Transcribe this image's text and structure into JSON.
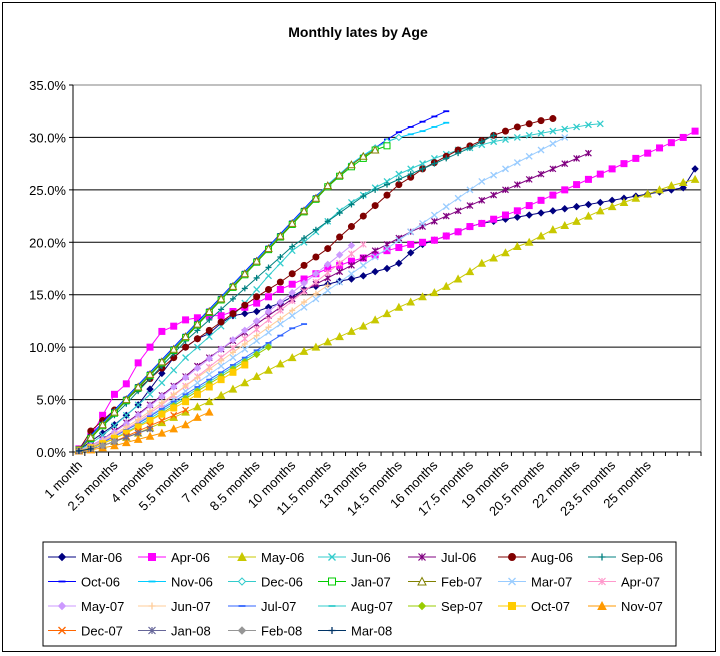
{
  "chart_data": {
    "type": "line",
    "title": "Monthly lates by Age",
    "xlabel": "",
    "ylabel": "",
    "ylim": [
      0,
      0.35
    ],
    "yticks": [
      0,
      0.05,
      0.1,
      0.15,
      0.2,
      0.25,
      0.3,
      0.35
    ],
    "ytick_labels": [
      "0.0%",
      "5.0%",
      "10.0%",
      "15.0%",
      "20.0%",
      "25.0%",
      "30.0%",
      "35.0%"
    ],
    "x_start": 1,
    "x_step": 0.5,
    "x_count": 53,
    "xtick_labels": [
      "1 month",
      "2.5 months",
      "4 months",
      "5.5 months",
      "7 months",
      "8.5 months",
      "10 months",
      "11.5 months",
      "13 months",
      "14.5 months",
      "16 months",
      "17.5 months",
      "19 months",
      "20.5 months",
      "22 months",
      "23.5 months",
      "25 months"
    ],
    "grid": "horizontal",
    "legend_position": "bottom",
    "series": [
      {
        "name": "Mar-06",
        "color": "#000080",
        "marker": "diamond",
        "values": [
          0.002,
          0.01,
          0.018,
          0.026,
          0.035,
          0.045,
          0.06,
          0.075,
          0.09,
          0.1,
          0.108,
          0.113,
          0.123,
          0.13,
          0.132,
          0.134,
          0.138,
          0.142,
          0.148,
          0.155,
          0.158,
          0.16,
          0.163,
          0.165,
          0.168,
          0.172,
          0.175,
          0.18,
          0.19,
          0.198,
          0.202,
          0.206,
          0.21,
          0.215,
          0.218,
          0.22,
          0.222,
          0.224,
          0.226,
          0.228,
          0.23,
          0.232,
          0.234,
          0.236,
          0.238,
          0.24,
          0.242,
          0.244,
          0.246,
          0.248,
          0.25,
          0.252,
          0.27
        ]
      },
      {
        "name": "Apr-06",
        "color": "#FF00FF",
        "marker": "square",
        "values": [
          0.003,
          0.015,
          0.035,
          0.055,
          0.065,
          0.085,
          0.1,
          0.115,
          0.12,
          0.126,
          0.128,
          0.13,
          0.13,
          0.134,
          0.138,
          0.142,
          0.148,
          0.155,
          0.16,
          0.165,
          0.17,
          0.175,
          0.178,
          0.182,
          0.185,
          0.188,
          0.192,
          0.195,
          0.198,
          0.2,
          0.202,
          0.206,
          0.21,
          0.215,
          0.218,
          0.222,
          0.226,
          0.23,
          0.235,
          0.24,
          0.245,
          0.25,
          0.255,
          0.26,
          0.265,
          0.27,
          0.275,
          0.28,
          0.285,
          0.29,
          0.295,
          0.3,
          0.306
        ]
      },
      {
        "name": "May-06",
        "color": "#C8C800",
        "marker": "triangle",
        "values": [
          0.001,
          0.003,
          0.006,
          0.01,
          0.014,
          0.018,
          0.023,
          0.028,
          0.033,
          0.038,
          0.043,
          0.048,
          0.054,
          0.06,
          0.066,
          0.072,
          0.078,
          0.084,
          0.09,
          0.096,
          0.1,
          0.105,
          0.11,
          0.115,
          0.12,
          0.126,
          0.132,
          0.138,
          0.143,
          0.148,
          0.152,
          0.158,
          0.165,
          0.172,
          0.18,
          0.185,
          0.19,
          0.196,
          0.2,
          0.206,
          0.212,
          0.216,
          0.22,
          0.225,
          0.23,
          0.234,
          0.238,
          0.242,
          0.246,
          0.25,
          0.254,
          0.257,
          0.26
        ]
      },
      {
        "name": "Jun-06",
        "color": "#33CCCC",
        "marker": "x",
        "values": [
          0.002,
          0.008,
          0.016,
          0.025,
          0.035,
          0.045,
          0.055,
          0.066,
          0.078,
          0.09,
          0.1,
          0.11,
          0.12,
          0.13,
          0.142,
          0.155,
          0.168,
          0.18,
          0.192,
          0.2,
          0.21,
          0.22,
          0.23,
          0.238,
          0.245,
          0.252,
          0.258,
          0.265,
          0.27,
          0.275,
          0.28,
          0.284,
          0.288,
          0.29,
          0.293,
          0.296,
          0.298,
          0.3,
          0.302,
          0.304,
          0.306,
          0.308,
          0.31,
          0.312,
          0.313
        ]
      },
      {
        "name": "Jul-06",
        "color": "#800080",
        "marker": "star",
        "values": [
          0.001,
          0.006,
          0.012,
          0.02,
          0.028,
          0.036,
          0.045,
          0.054,
          0.063,
          0.072,
          0.082,
          0.09,
          0.098,
          0.106,
          0.114,
          0.122,
          0.13,
          0.138,
          0.146,
          0.154,
          0.16,
          0.166,
          0.172,
          0.178,
          0.185,
          0.192,
          0.198,
          0.204,
          0.21,
          0.215,
          0.22,
          0.225,
          0.23,
          0.235,
          0.24,
          0.245,
          0.25,
          0.255,
          0.26,
          0.265,
          0.27,
          0.275,
          0.28,
          0.285
        ]
      },
      {
        "name": "Aug-06",
        "color": "#800000",
        "marker": "circle",
        "values": [
          0.002,
          0.02,
          0.03,
          0.04,
          0.05,
          0.06,
          0.07,
          0.08,
          0.09,
          0.1,
          0.108,
          0.116,
          0.124,
          0.132,
          0.14,
          0.148,
          0.155,
          0.162,
          0.17,
          0.178,
          0.186,
          0.194,
          0.205,
          0.215,
          0.225,
          0.235,
          0.245,
          0.255,
          0.262,
          0.27,
          0.276,
          0.282,
          0.288,
          0.292,
          0.297,
          0.302,
          0.306,
          0.31,
          0.313,
          0.316,
          0.318
        ]
      },
      {
        "name": "Sep-06",
        "color": "#008080",
        "marker": "plus",
        "values": [
          0.002,
          0.015,
          0.025,
          0.035,
          0.046,
          0.058,
          0.07,
          0.082,
          0.094,
          0.106,
          0.116,
          0.126,
          0.136,
          0.146,
          0.156,
          0.166,
          0.176,
          0.186,
          0.196,
          0.204,
          0.212,
          0.22,
          0.228,
          0.236,
          0.244,
          0.25,
          0.255,
          0.26,
          0.265,
          0.27,
          0.275,
          0.28,
          0.285,
          0.29,
          0.296,
          0.302
        ]
      },
      {
        "name": "Oct-06",
        "color": "#0000FF",
        "marker": "dash",
        "values": [
          0.002,
          0.016,
          0.028,
          0.04,
          0.052,
          0.064,
          0.076,
          0.088,
          0.1,
          0.112,
          0.124,
          0.136,
          0.148,
          0.16,
          0.172,
          0.184,
          0.196,
          0.208,
          0.22,
          0.232,
          0.244,
          0.254,
          0.264,
          0.274,
          0.282,
          0.29,
          0.298,
          0.305,
          0.31,
          0.315,
          0.32,
          0.325
        ]
      },
      {
        "name": "Nov-06",
        "color": "#00CCFF",
        "marker": "dash",
        "values": [
          0.002,
          0.015,
          0.027,
          0.039,
          0.051,
          0.063,
          0.075,
          0.087,
          0.099,
          0.111,
          0.123,
          0.135,
          0.147,
          0.159,
          0.171,
          0.183,
          0.195,
          0.207,
          0.219,
          0.231,
          0.243,
          0.255,
          0.265,
          0.275,
          0.283,
          0.29,
          0.296,
          0.3,
          0.303,
          0.306,
          0.31,
          0.314
        ]
      },
      {
        "name": "Dec-06",
        "color": "#33CCCC",
        "marker": "diamond-open",
        "values": [
          0.002,
          0.014,
          0.026,
          0.038,
          0.05,
          0.062,
          0.074,
          0.086,
          0.098,
          0.11,
          0.122,
          0.134,
          0.146,
          0.158,
          0.17,
          0.182,
          0.194,
          0.206,
          0.218,
          0.23,
          0.242,
          0.254,
          0.264,
          0.274,
          0.282,
          0.29,
          0.296,
          0.3
        ]
      },
      {
        "name": "Jan-07",
        "color": "#00CC00",
        "marker": "square-open",
        "values": [
          0.002,
          0.013,
          0.025,
          0.037,
          0.049,
          0.061,
          0.073,
          0.085,
          0.097,
          0.109,
          0.121,
          0.133,
          0.145,
          0.157,
          0.169,
          0.181,
          0.193,
          0.205,
          0.217,
          0.229,
          0.241,
          0.253,
          0.263,
          0.272,
          0.28,
          0.288,
          0.292
        ]
      },
      {
        "name": "Feb-07",
        "color": "#808000",
        "marker": "triangle-open",
        "values": [
          0.002,
          0.014,
          0.026,
          0.038,
          0.05,
          0.062,
          0.074,
          0.086,
          0.098,
          0.11,
          0.122,
          0.134,
          0.146,
          0.158,
          0.17,
          0.182,
          0.194,
          0.206,
          0.218,
          0.23,
          0.242,
          0.254,
          0.264,
          0.274,
          0.282,
          0.288
        ]
      },
      {
        "name": "Mar-07",
        "color": "#99CCFF",
        "marker": "x",
        "values": [
          0.001,
          0.005,
          0.01,
          0.016,
          0.022,
          0.028,
          0.035,
          0.042,
          0.05,
          0.058,
          0.066,
          0.074,
          0.082,
          0.09,
          0.098,
          0.106,
          0.114,
          0.122,
          0.13,
          0.138,
          0.146,
          0.154,
          0.162,
          0.17,
          0.178,
          0.186,
          0.194,
          0.202,
          0.21,
          0.218,
          0.226,
          0.234,
          0.242,
          0.25,
          0.258,
          0.264,
          0.27,
          0.276,
          0.282,
          0.288,
          0.294,
          0.3
        ]
      },
      {
        "name": "Apr-07",
        "color": "#FF99CC",
        "marker": "star",
        "values": [
          0.001,
          0.005,
          0.01,
          0.016,
          0.022,
          0.029,
          0.037,
          0.045,
          0.054,
          0.063,
          0.072,
          0.081,
          0.09,
          0.099,
          0.108,
          0.117,
          0.126,
          0.135,
          0.144,
          0.153,
          0.162,
          0.171,
          0.18,
          0.189,
          0.198
        ]
      },
      {
        "name": "May-07",
        "color": "#CC99FF",
        "marker": "diamond",
        "values": [
          0.001,
          0.006,
          0.012,
          0.019,
          0.027,
          0.035,
          0.044,
          0.053,
          0.062,
          0.071,
          0.08,
          0.089,
          0.098,
          0.107,
          0.116,
          0.125,
          0.134,
          0.143,
          0.152,
          0.161,
          0.17,
          0.179,
          0.188,
          0.197
        ]
      },
      {
        "name": "Jun-07",
        "color": "#FFCC99",
        "marker": "plus",
        "values": [
          0.001,
          0.005,
          0.011,
          0.017,
          0.024,
          0.031,
          0.039,
          0.047,
          0.055,
          0.063,
          0.071,
          0.079,
          0.087,
          0.095,
          0.103,
          0.111,
          0.119,
          0.127,
          0.135,
          0.143,
          0.151,
          0.159
        ]
      },
      {
        "name": "Jul-07",
        "color": "#3366FF",
        "marker": "dash",
        "values": [
          0.001,
          0.004,
          0.009,
          0.015,
          0.021,
          0.027,
          0.034,
          0.041,
          0.048,
          0.055,
          0.062,
          0.069,
          0.076,
          0.083,
          0.09,
          0.097,
          0.104,
          0.111,
          0.118,
          0.122
        ]
      },
      {
        "name": "Aug-07",
        "color": "#33CCCC",
        "marker": "dash",
        "values": [
          0.001,
          0.004,
          0.008,
          0.013,
          0.019,
          0.025,
          0.032,
          0.039,
          0.046,
          0.053,
          0.06,
          0.067,
          0.074,
          0.081,
          0.088,
          0.095,
          0.102
        ]
      },
      {
        "name": "Sep-07",
        "color": "#99CC00",
        "marker": "diamond",
        "values": [
          0.001,
          0.004,
          0.008,
          0.013,
          0.018,
          0.024,
          0.03,
          0.037,
          0.044,
          0.051,
          0.058,
          0.065,
          0.072,
          0.079,
          0.086,
          0.093,
          0.1
        ]
      },
      {
        "name": "Oct-07",
        "color": "#FFCC00",
        "marker": "square",
        "values": [
          0.001,
          0.004,
          0.008,
          0.013,
          0.018,
          0.024,
          0.03,
          0.036,
          0.042,
          0.048,
          0.055,
          0.062,
          0.069,
          0.076,
          0.083
        ]
      },
      {
        "name": "Nov-07",
        "color": "#FF9900",
        "marker": "triangle",
        "values": [
          0.001,
          0.002,
          0.004,
          0.006,
          0.009,
          0.012,
          0.015,
          0.018,
          0.022,
          0.026,
          0.033,
          0.038
        ]
      },
      {
        "name": "Dec-07",
        "color": "#FF6600",
        "marker": "x",
        "values": [
          0.001,
          0.003,
          0.006,
          0.01,
          0.015,
          0.02,
          0.025,
          0.03,
          0.035,
          0.04
        ]
      },
      {
        "name": "Jan-08",
        "color": "#666699",
        "marker": "star",
        "values": [
          0.001,
          0.003,
          0.006,
          0.01,
          0.014,
          0.018,
          0.022
        ]
      },
      {
        "name": "Feb-08",
        "color": "#969696",
        "marker": "diamond",
        "values": [
          0.001,
          0.003,
          0.006,
          0.01
        ]
      },
      {
        "name": "Mar-08",
        "color": "#003366",
        "marker": "plus",
        "values": [
          0.001,
          0.003
        ]
      }
    ]
  }
}
